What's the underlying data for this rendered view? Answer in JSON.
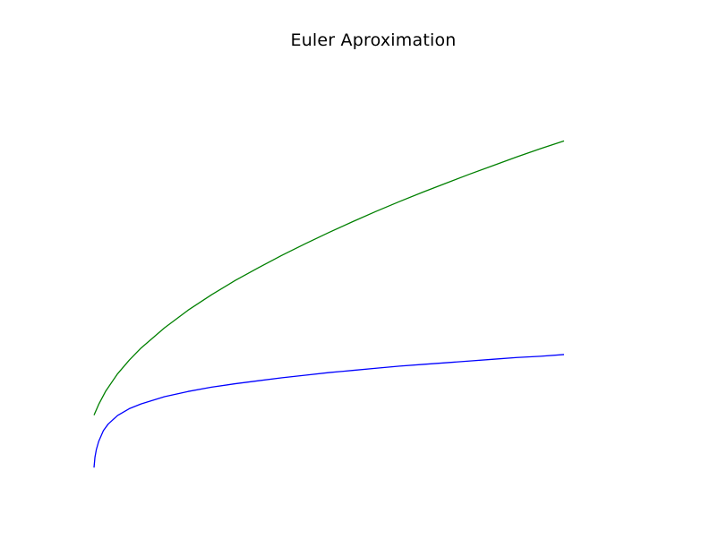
{
  "chart_data": {
    "type": "line",
    "title": "Euler Aproximation",
    "xlabel": "",
    "ylabel": "",
    "axes_visible": false,
    "grid": false,
    "xlim": [
      0,
      10
    ],
    "ylim": [
      0,
      10
    ],
    "series": [
      {
        "color": "#008000",
        "x": [
          0,
          0.1,
          0.25,
          0.5,
          0.75,
          1,
          1.5,
          2,
          2.5,
          3,
          3.5,
          4,
          4.5,
          5,
          5.5,
          6,
          6.5,
          7,
          7.5,
          8,
          8.5,
          9,
          9.5,
          10
        ],
        "y": [
          1.8,
          2.05,
          2.36,
          2.76,
          3.08,
          3.36,
          3.83,
          4.24,
          4.6,
          4.93,
          5.23,
          5.52,
          5.79,
          6.05,
          6.3,
          6.54,
          6.77,
          6.99,
          7.2,
          7.41,
          7.61,
          7.81,
          8.0,
          8.18
        ]
      },
      {
        "color": "#0000ff",
        "x": [
          0,
          0.02,
          0.05,
          0.1,
          0.2,
          0.3,
          0.5,
          0.75,
          1,
          1.5,
          2,
          2.5,
          3,
          3.5,
          4,
          4.5,
          5,
          5.5,
          6,
          6.5,
          7,
          7.5,
          8,
          8.5,
          9,
          9.5,
          10
        ],
        "y": [
          0.58,
          0.82,
          1.0,
          1.19,
          1.44,
          1.59,
          1.79,
          1.95,
          2.06,
          2.23,
          2.35,
          2.45,
          2.53,
          2.6,
          2.67,
          2.73,
          2.79,
          2.84,
          2.89,
          2.94,
          2.98,
          3.02,
          3.06,
          3.1,
          3.14,
          3.17,
          3.21
        ]
      }
    ]
  }
}
